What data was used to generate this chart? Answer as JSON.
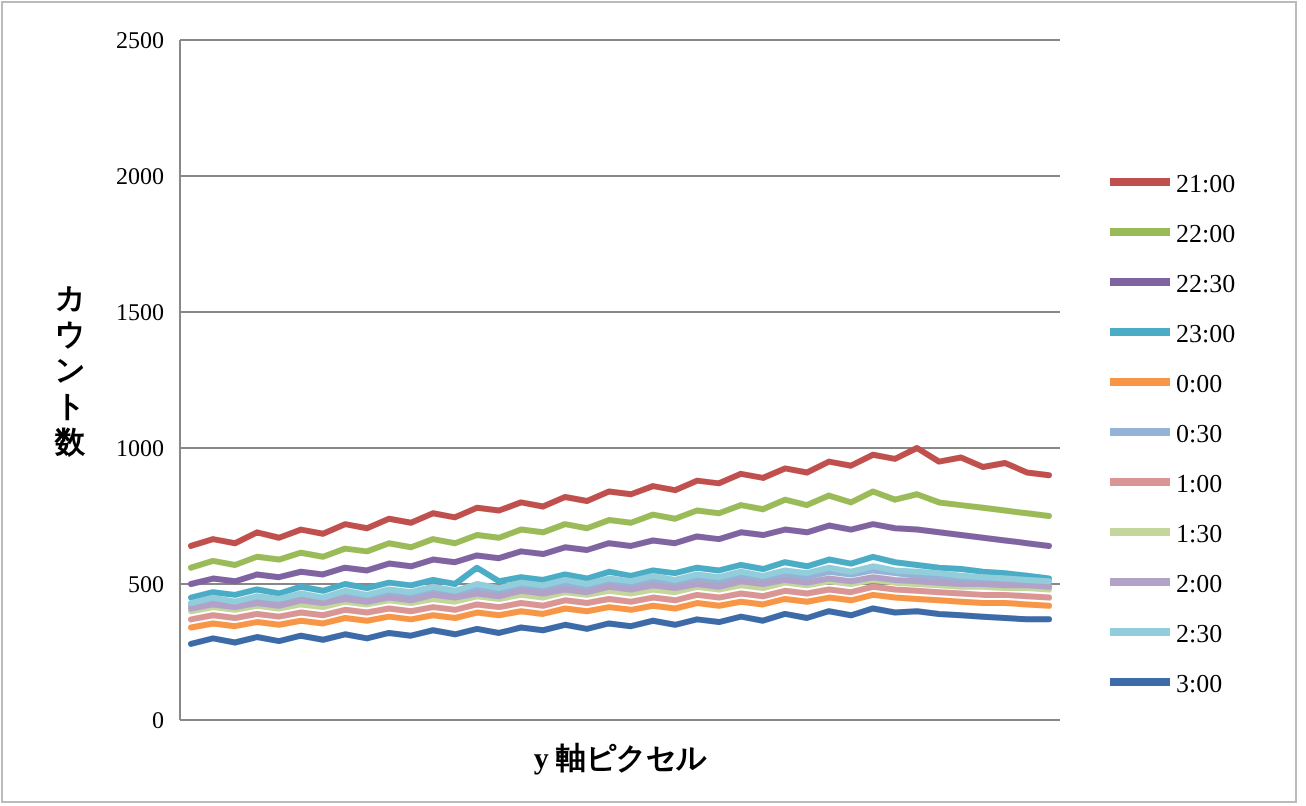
{
  "chart_data": {
    "type": "line",
    "ylabel": "カウント数",
    "xlabel": "y 軸ピクセル",
    "categories": [
      null,
      null,
      null,
      null,
      null,
      null,
      null,
      null,
      null,
      null,
      null,
      null,
      null,
      null,
      null,
      null,
      null,
      null,
      null,
      null,
      null,
      null,
      null,
      null,
      null,
      null,
      null,
      null,
      null,
      null,
      null,
      null,
      null,
      null,
      null,
      null,
      null,
      null,
      null,
      null
    ],
    "ylim": [
      0,
      2500
    ],
    "yticks": [
      0,
      500,
      1000,
      1500,
      2000,
      2500
    ],
    "grid": "y",
    "legend": "right",
    "tick_labels": "y",
    "marker": "none",
    "line_style": "solid",
    "series": [
      {
        "name": "21:00",
        "color": "#c0504d",
        "values": [
          640,
          665,
          650,
          690,
          670,
          700,
          685,
          720,
          705,
          740,
          725,
          760,
          745,
          780,
          770,
          800,
          785,
          820,
          805,
          840,
          830,
          860,
          845,
          880,
          870,
          905,
          890,
          925,
          910,
          950,
          935,
          975,
          960,
          1000,
          950,
          965,
          930,
          945,
          910,
          900
        ]
      },
      {
        "name": "22:00",
        "color": "#9bbb59",
        "values": [
          560,
          585,
          570,
          600,
          590,
          615,
          600,
          630,
          620,
          650,
          635,
          665,
          650,
          680,
          670,
          700,
          690,
          720,
          705,
          735,
          725,
          755,
          740,
          770,
          760,
          790,
          775,
          810,
          790,
          825,
          800,
          840,
          810,
          830,
          800,
          790,
          780,
          770,
          760,
          750
        ]
      },
      {
        "name": "22:30",
        "color": "#8064a2",
        "values": [
          500,
          520,
          510,
          535,
          525,
          545,
          535,
          560,
          550,
          575,
          565,
          590,
          580,
          605,
          595,
          620,
          610,
          635,
          625,
          650,
          640,
          660,
          650,
          675,
          665,
          690,
          680,
          700,
          690,
          715,
          700,
          720,
          705,
          700,
          690,
          680,
          670,
          660,
          650,
          640
        ]
      },
      {
        "name": "23:00",
        "color": "#4bacc6",
        "values": [
          450,
          470,
          460,
          480,
          465,
          490,
          475,
          500,
          485,
          505,
          495,
          515,
          500,
          560,
          510,
          525,
          515,
          535,
          520,
          545,
          530,
          550,
          540,
          560,
          550,
          570,
          555,
          580,
          565,
          590,
          575,
          600,
          580,
          570,
          560,
          555,
          545,
          540,
          530,
          520
        ]
      },
      {
        "name": "0:00",
        "color": "#f79646",
        "values": [
          340,
          355,
          345,
          360,
          350,
          365,
          355,
          375,
          365,
          380,
          370,
          385,
          375,
          395,
          385,
          400,
          390,
          410,
          400,
          415,
          405,
          420,
          410,
          430,
          420,
          435,
          425,
          445,
          435,
          450,
          440,
          460,
          450,
          445,
          440,
          435,
          430,
          430,
          425,
          420
        ]
      },
      {
        "name": "0:30",
        "color": "#95b3d7",
        "values": [
          420,
          435,
          425,
          440,
          430,
          450,
          440,
          455,
          445,
          465,
          455,
          470,
          460,
          480,
          470,
          490,
          480,
          495,
          485,
          505,
          495,
          510,
          500,
          520,
          510,
          530,
          520,
          535,
          525,
          545,
          535,
          550,
          540,
          530,
          525,
          515,
          510,
          505,
          495,
          490
        ]
      },
      {
        "name": "1:00",
        "color": "#d99694",
        "values": [
          370,
          385,
          375,
          390,
          380,
          395,
          385,
          405,
          395,
          410,
          400,
          415,
          405,
          425,
          415,
          430,
          420,
          440,
          430,
          445,
          435,
          450,
          440,
          460,
          450,
          465,
          455,
          475,
          465,
          480,
          470,
          490,
          480,
          475,
          470,
          465,
          460,
          460,
          455,
          450
        ]
      },
      {
        "name": "1:30",
        "color": "#c3d69b",
        "values": [
          400,
          415,
          405,
          420,
          410,
          425,
          415,
          435,
          425,
          440,
          430,
          445,
          435,
          455,
          445,
          460,
          450,
          470,
          460,
          475,
          465,
          480,
          470,
          490,
          480,
          495,
          485,
          505,
          495,
          510,
          500,
          515,
          505,
          500,
          495,
          490,
          490,
          485,
          485,
          480
        ]
      },
      {
        "name": "2:00",
        "color": "#b2a2c7",
        "values": [
          410,
          425,
          415,
          430,
          420,
          440,
          430,
          445,
          435,
          450,
          440,
          460,
          450,
          465,
          455,
          475,
          465,
          480,
          470,
          490,
          480,
          495,
          485,
          500,
          490,
          510,
          500,
          515,
          505,
          520,
          510,
          525,
          515,
          510,
          505,
          500,
          500,
          495,
          495,
          490
        ]
      },
      {
        "name": "2:30",
        "color": "#92cddc",
        "values": [
          430,
          450,
          435,
          455,
          445,
          465,
          450,
          475,
          460,
          480,
          470,
          490,
          475,
          500,
          485,
          505,
          495,
          515,
          500,
          520,
          510,
          530,
          515,
          535,
          525,
          545,
          530,
          550,
          540,
          560,
          545,
          565,
          550,
          545,
          540,
          530,
          525,
          520,
          515,
          510
        ]
      },
      {
        "name": "3:00",
        "color": "#3c6ba8",
        "values": [
          280,
          300,
          285,
          305,
          290,
          310,
          295,
          315,
          300,
          320,
          310,
          330,
          315,
          335,
          320,
          340,
          330,
          350,
          335,
          355,
          345,
          365,
          350,
          370,
          360,
          380,
          365,
          390,
          375,
          400,
          385,
          410,
          395,
          400,
          390,
          385,
          380,
          375,
          370,
          370
        ]
      }
    ]
  }
}
